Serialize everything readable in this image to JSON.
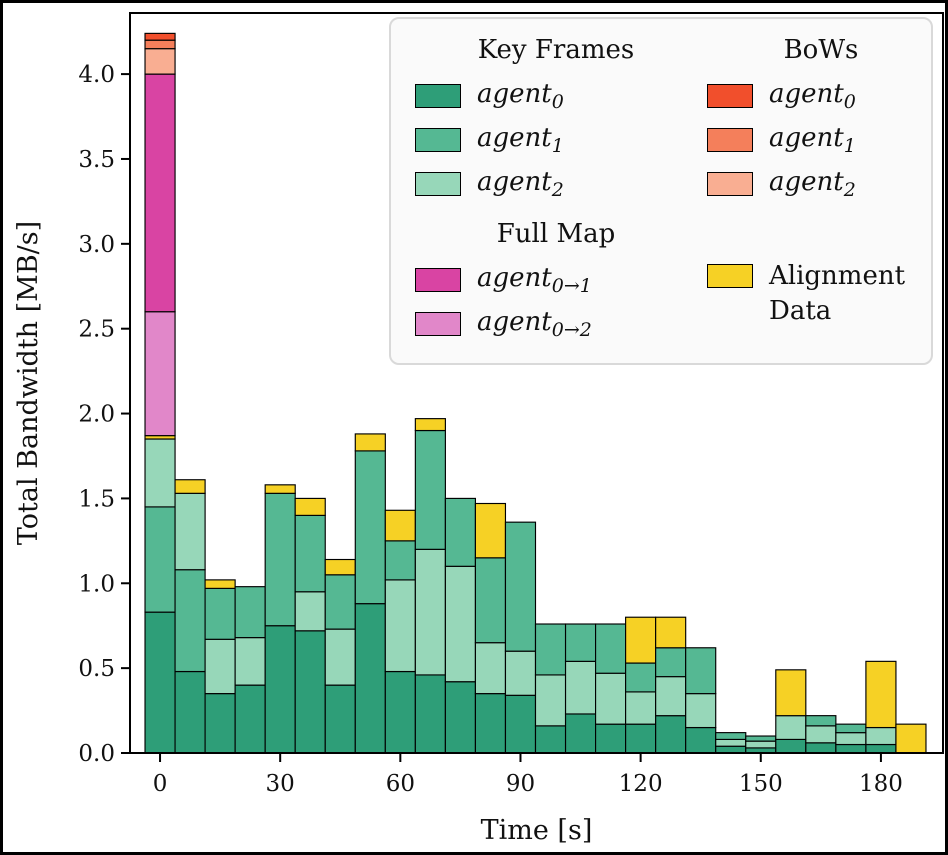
{
  "chart_data": {
    "type": "bar",
    "stacked": true,
    "xlabel": "Time [s]",
    "ylabel": "Total Bandwidth [MB/s]",
    "xlim": [
      -7.5,
      195.5
    ],
    "ylim": [
      0,
      4.36
    ],
    "xticks": [
      0,
      30,
      60,
      90,
      120,
      150,
      180
    ],
    "yticks": [
      0.0,
      0.5,
      1.0,
      1.5,
      2.0,
      2.5,
      3.0,
      3.5,
      4.0
    ],
    "bar_width": 7.5,
    "grid": false,
    "colors": {
      "kf0": "#2e9e78",
      "kf1": "#55b893",
      "kf2": "#97d7b9",
      "bow0": "#f14f2c",
      "bow1": "#f47f5b",
      "bow2": "#f9ae92",
      "fm01": "#d944a3",
      "fm02": "#e187c9",
      "align": "#f6d125"
    },
    "edge_color": "#000000",
    "bars": [
      {
        "t": 0,
        "segments": [
          [
            "kf0",
            0.83
          ],
          [
            "kf1",
            0.62
          ],
          [
            "kf2",
            0.4
          ],
          [
            "align",
            0.02
          ],
          [
            "fm02",
            0.73
          ],
          [
            "fm01",
            1.4
          ],
          [
            "bow2",
            0.15
          ],
          [
            "bow1",
            0.05
          ],
          [
            "bow0",
            0.04
          ]
        ]
      },
      {
        "t": 7.5,
        "segments": [
          [
            "kf0",
            0.48
          ],
          [
            "kf1",
            0.6
          ],
          [
            "kf2",
            0.45
          ],
          [
            "align",
            0.08
          ]
        ]
      },
      {
        "t": 15,
        "segments": [
          [
            "kf0",
            0.35
          ],
          [
            "kf2",
            0.32
          ],
          [
            "kf1",
            0.3
          ],
          [
            "align",
            0.05
          ]
        ]
      },
      {
        "t": 22.5,
        "segments": [
          [
            "kf0",
            0.4
          ],
          [
            "kf2",
            0.28
          ],
          [
            "kf1",
            0.3
          ]
        ]
      },
      {
        "t": 30,
        "segments": [
          [
            "kf0",
            0.75
          ],
          [
            "kf1",
            0.78
          ],
          [
            "align",
            0.05
          ]
        ]
      },
      {
        "t": 37.5,
        "segments": [
          [
            "kf0",
            0.72
          ],
          [
            "kf2",
            0.23
          ],
          [
            "kf1",
            0.45
          ],
          [
            "align",
            0.1
          ]
        ]
      },
      {
        "t": 45,
        "segments": [
          [
            "kf0",
            0.4
          ],
          [
            "kf2",
            0.33
          ],
          [
            "kf1",
            0.32
          ],
          [
            "align",
            0.09
          ]
        ]
      },
      {
        "t": 52.5,
        "segments": [
          [
            "kf0",
            0.88
          ],
          [
            "kf1",
            0.9
          ],
          [
            "align",
            0.1
          ]
        ]
      },
      {
        "t": 60,
        "segments": [
          [
            "kf0",
            0.48
          ],
          [
            "kf2",
            0.54
          ],
          [
            "kf1",
            0.23
          ],
          [
            "align",
            0.18
          ]
        ]
      },
      {
        "t": 67.5,
        "segments": [
          [
            "kf0",
            0.46
          ],
          [
            "kf2",
            0.74
          ],
          [
            "kf1",
            0.7
          ],
          [
            "align",
            0.07
          ]
        ]
      },
      {
        "t": 75,
        "segments": [
          [
            "kf0",
            0.42
          ],
          [
            "kf2",
            0.68
          ],
          [
            "kf1",
            0.4
          ]
        ]
      },
      {
        "t": 82.5,
        "segments": [
          [
            "kf0",
            0.35
          ],
          [
            "kf2",
            0.3
          ],
          [
            "kf1",
            0.5
          ],
          [
            "align",
            0.32
          ]
        ]
      },
      {
        "t": 90,
        "segments": [
          [
            "kf0",
            0.34
          ],
          [
            "kf2",
            0.26
          ],
          [
            "kf1",
            0.76
          ]
        ]
      },
      {
        "t": 97.5,
        "segments": [
          [
            "kf0",
            0.16
          ],
          [
            "kf2",
            0.3
          ],
          [
            "kf1",
            0.3
          ]
        ]
      },
      {
        "t": 105,
        "segments": [
          [
            "kf0",
            0.23
          ],
          [
            "kf2",
            0.31
          ],
          [
            "kf1",
            0.22
          ]
        ]
      },
      {
        "t": 112.5,
        "segments": [
          [
            "kf0",
            0.17
          ],
          [
            "kf2",
            0.3
          ],
          [
            "kf1",
            0.29
          ]
        ]
      },
      {
        "t": 120,
        "segments": [
          [
            "kf0",
            0.17
          ],
          [
            "kf2",
            0.19
          ],
          [
            "kf1",
            0.17
          ],
          [
            "align",
            0.27
          ]
        ]
      },
      {
        "t": 127.5,
        "segments": [
          [
            "kf0",
            0.22
          ],
          [
            "kf2",
            0.23
          ],
          [
            "kf1",
            0.17
          ],
          [
            "align",
            0.18
          ]
        ]
      },
      {
        "t": 135,
        "segments": [
          [
            "kf0",
            0.15
          ],
          [
            "kf2",
            0.2
          ],
          [
            "kf1",
            0.27
          ]
        ]
      },
      {
        "t": 142.5,
        "segments": [
          [
            "kf0",
            0.04
          ],
          [
            "kf2",
            0.04
          ],
          [
            "kf1",
            0.04
          ]
        ]
      },
      {
        "t": 150,
        "segments": [
          [
            "kf0",
            0.03
          ],
          [
            "kf2",
            0.04
          ],
          [
            "kf1",
            0.03
          ]
        ]
      },
      {
        "t": 157.5,
        "segments": [
          [
            "kf0",
            0.08
          ],
          [
            "kf2",
            0.14
          ],
          [
            "align",
            0.27
          ]
        ]
      },
      {
        "t": 165,
        "segments": [
          [
            "kf0",
            0.06
          ],
          [
            "kf2",
            0.1
          ],
          [
            "kf1",
            0.06
          ]
        ]
      },
      {
        "t": 172.5,
        "segments": [
          [
            "kf0",
            0.05
          ],
          [
            "kf2",
            0.07
          ],
          [
            "kf1",
            0.05
          ]
        ]
      },
      {
        "t": 180,
        "segments": [
          [
            "kf0",
            0.05
          ],
          [
            "kf2",
            0.1
          ],
          [
            "align",
            0.39
          ]
        ]
      },
      {
        "t": 187.5,
        "segments": [
          [
            "align",
            0.17
          ]
        ]
      }
    ]
  },
  "legend": {
    "groups": {
      "key_frames": {
        "title": "Key Frames",
        "items": [
          {
            "word": "agent",
            "sub": "0",
            "color_key": "kf0"
          },
          {
            "word": "agent",
            "sub": "1",
            "color_key": "kf1"
          },
          {
            "word": "agent",
            "sub": "2",
            "color_key": "kf2"
          }
        ]
      },
      "bows": {
        "title": "BoWs",
        "items": [
          {
            "word": "agent",
            "sub": "0",
            "color_key": "bow0"
          },
          {
            "word": "agent",
            "sub": "1",
            "color_key": "bow1"
          },
          {
            "word": "agent",
            "sub": "2",
            "color_key": "bow2"
          }
        ]
      },
      "full_map": {
        "title": "Full Map",
        "items": [
          {
            "word": "agent",
            "sub": "0→1",
            "color_key": "fm01"
          },
          {
            "word": "agent",
            "sub": "0→2",
            "color_key": "fm02"
          }
        ]
      },
      "alignment": {
        "items": [
          {
            "label": "Alignment Data",
            "color_key": "align"
          }
        ]
      }
    }
  }
}
